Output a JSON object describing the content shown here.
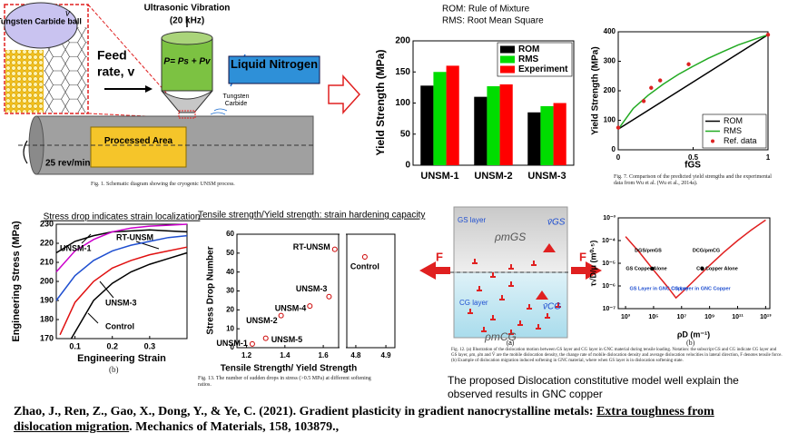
{
  "schematic": {
    "ball": "Tungsten Carbide ball",
    "v": "v",
    "ultrasonic": "Ultrasonic Vibration",
    "frequency": "(20 kHz)",
    "feed": "Feed",
    "rate": "rate, v",
    "formula": "P= Ps + Pv",
    "tool": "Tungsten Carbide",
    "nitrogen": "Liquid Nitrogen",
    "area": "Processed Area",
    "speed": "25 rev/min",
    "caption": "Fig. 1. Schematic diagram showing the cryogenic UNSM process."
  },
  "dislocation_figure": {
    "gs_layer": "GS layer",
    "cg_layer": "CG layer",
    "rho_gs": "ρmGS",
    "v_gs": "v̄GS",
    "v_cg": "v̄CG",
    "rho_cg": "ρmCG",
    "force_left": "F",
    "force_right": "F",
    "panel": "(a)",
    "caption": "Fig. 12. (a) Illustration of the dislocation motion between GS layer and CG layer in GNC material during tensile loading. Notation: the subscript GS and CG indicate CG layer and GS layer, ρm, ρ̇m and V̄ are the mobile dislocation density, the change rate of mobile dislocation density and average dislocation velocities in lateral direction, F denotes tensile force. (b) Example of dislocation migration induced softening in GNC material, where when GS layer is in dislocation softening state."
  },
  "conclusion": "The proposed Dislocation constitutive model well explain the observed results in GNC copper",
  "reference": {
    "authors": "Zhao, J., Ren, Z., Gao, X., Dong, Y., & Ye, C. (2021). Gradient plasticity in gradient nanocrystalline metals: ",
    "title": "Extra toughness from dislocation migration",
    "source": ". Mechanics of Materials, 158, 103879.,"
  },
  "chart_data": [
    {
      "type": "bar",
      "y_label": "Yield Strength (MPa)",
      "annotations": [
        "ROM: Rule of Mixture",
        "RMS: Root Mean Square"
      ],
      "categories": [
        "UNSM-1",
        "UNSM-2",
        "UNSM-3"
      ],
      "series": [
        {
          "name": "ROM",
          "color": "#000000",
          "values": [
            128,
            110,
            85
          ]
        },
        {
          "name": "RMS",
          "color": "#00dd00",
          "values": [
            150,
            127,
            95
          ]
        },
        {
          "name": "Experiment",
          "color": "#ff0000",
          "values": [
            160,
            130,
            100
          ]
        }
      ],
      "ylim": [
        0,
        200
      ],
      "yticks": [
        0,
        50,
        100,
        150,
        200
      ],
      "legend": "upper right"
    },
    {
      "type": "line",
      "y_label": "Yield Strength (MPa)",
      "x_label": "fGS",
      "caption": "Fig. 7. Comparison of the predicted yield strengths and the experimental data from Wu et al. (Wu et al., 2014a).",
      "series": [
        {
          "name": "ROM",
          "color": "#000000",
          "x": [
            0,
            1
          ],
          "values": [
            70,
            390
          ]
        },
        {
          "name": "RMS",
          "color": "#22aa22",
          "x": [
            0,
            0.1,
            0.2,
            0.3,
            0.4,
            0.5,
            0.6,
            0.7,
            0.8,
            0.9,
            1
          ],
          "values": [
            70,
            140,
            185,
            222,
            255,
            283,
            310,
            333,
            355,
            373,
            390
          ]
        },
        {
          "name": "Ref. data",
          "color": "#dd2222",
          "marker": true,
          "x": [
            0,
            0.17,
            0.22,
            0.28,
            0.47,
            1
          ],
          "values": [
            75,
            165,
            210,
            235,
            290,
            390
          ]
        }
      ],
      "xlim": [
        0,
        1
      ],
      "xticks": [
        0,
        0.5,
        1
      ],
      "ylim": [
        0,
        400
      ],
      "yticks": [
        0,
        100,
        200,
        300,
        400
      ],
      "legend": "lower right"
    },
    {
      "type": "line",
      "title": "Stress drop indicates strain localization",
      "y_label": "Engineering Stress (MPa)",
      "x_label": "Engineering Strain",
      "caption": "(b)",
      "series": [
        {
          "name": "RT-UNSM",
          "color": "#000000",
          "x": [
            0.05,
            0.1,
            0.15,
            0.2,
            0.25,
            0.3,
            0.35,
            0.4
          ],
          "values": [
            215,
            221,
            224,
            226,
            226.5,
            227,
            226.5,
            226
          ]
        },
        {
          "name": "UNSM-1",
          "color": "#cc00cc",
          "x": [
            0.05,
            0.1,
            0.15,
            0.2,
            0.25,
            0.3,
            0.35,
            0.4
          ],
          "values": [
            205,
            216,
            222,
            226,
            228,
            229,
            229.5,
            230
          ]
        },
        {
          "color": "#1f4fd0",
          "x": [
            0.05,
            0.1,
            0.15,
            0.2,
            0.25,
            0.3,
            0.35,
            0.4
          ],
          "values": [
            190,
            203,
            211,
            216,
            219,
            221,
            223,
            224
          ]
        },
        {
          "name": "UNSM-3",
          "color": "#e01010",
          "x": [
            0.06,
            0.1,
            0.15,
            0.2,
            0.25,
            0.3,
            0.35,
            0.4
          ],
          "values": [
            172,
            189,
            200,
            207,
            211,
            214,
            216,
            218
          ]
        },
        {
          "name": "Control",
          "color": "#000000",
          "x": [
            0.09,
            0.12,
            0.15,
            0.2,
            0.25,
            0.3,
            0.35,
            0.4
          ],
          "values": [
            170,
            180,
            190,
            199,
            205,
            209,
            212,
            215
          ]
        }
      ],
      "xlim": [
        0.05,
        0.4
      ],
      "xticks": [
        0.1,
        0.2,
        0.3
      ],
      "ylim": [
        170,
        230
      ],
      "yticks": [
        170,
        180,
        190,
        200,
        210,
        220,
        230
      ],
      "legend": "none"
    },
    {
      "type": "scatter",
      "title": "Tensile strength/Yield strength: strain hardening capacity",
      "y_label": "Stress Drop Number",
      "x_label": "Tensile Strength/ Yield Strength",
      "caption": "Fig. 13. The number of sudden drops in stress (>0.5 MPa) at different softening ratios.",
      "labels": [
        "UNSM-1",
        "UNSM-5",
        "UNSM-2",
        "UNSM-4",
        "UNSM-3",
        "RT-UNSM",
        "Control"
      ],
      "x": [
        1.23,
        1.3,
        1.38,
        1.53,
        1.63,
        1.66,
        4.83
      ],
      "values": [
        2,
        5,
        17,
        22,
        27,
        52,
        48
      ],
      "color": "#cc0000",
      "xlims": [
        [
          1.15,
          1.68
        ],
        [
          4.77,
          4.93
        ]
      ],
      "xticks": [
        1.2,
        1.4,
        1.6,
        4.8,
        4.9
      ],
      "ylim": [
        0,
        60
      ],
      "yticks": [
        0,
        10,
        20,
        30,
        40,
        50,
        60
      ]
    },
    {
      "type": "line",
      "y_label": "τ√D/μ (m⁰·⁵)",
      "x_label": "ρD (m⁻¹)",
      "caption": "(b)",
      "xscale": "log",
      "yscale": "log",
      "annotations": [
        "GS Copper Alone",
        "CG Copper Alone",
        "GS Layer in GNC Copper",
        "CG Layer in GNC Copper",
        "DGS/ρmGS",
        "DCG/ρmCG"
      ],
      "series": [
        {
          "color": "#e02020",
          "x": [
            1000,
            10000,
            100000,
            1000000,
            4000000,
            10000000,
            100000000,
            1000000000,
            10000000000,
            100000000000,
            1000000000000,
            10000000000000
          ],
          "values": [
            0.00015,
            3e-05,
            5e-06,
            9e-07,
            3e-07,
            5e-07,
            2e-06,
            8e-06,
            3e-05,
            0.0001,
            0.0003,
            0.0008
          ]
        },
        {
          "color": "#000000",
          "marker": true,
          "x": [
            80000,
            300000000
          ],
          "values": [
            5.8e-06,
            5.8e-06
          ]
        }
      ],
      "xlim": [
        300,
        20000000000000
      ],
      "ylim": [
        1e-07,
        0.001
      ],
      "xticks": [
        {
          "value": 1000,
          "label": "10³"
        },
        {
          "value": 100000,
          "label": "10⁵"
        },
        {
          "value": 10000000,
          "label": "10⁷"
        },
        {
          "value": 1000000000,
          "label": "10⁹"
        },
        {
          "value": 100000000000,
          "label": "10¹¹"
        },
        {
          "value": 10000000000000,
          "label": "10¹³"
        }
      ],
      "yticks": [
        {
          "value": 0.001,
          "label": "10⁻³"
        },
        {
          "value": 0.0001,
          "label": "10⁻⁴"
        },
        {
          "value": 1e-05,
          "label": "10⁻⁵"
        },
        {
          "value": 1e-06,
          "label": "10⁻⁶"
        },
        {
          "value": 1e-07,
          "label": "10⁻⁷"
        }
      ],
      "legend": "none"
    }
  ]
}
